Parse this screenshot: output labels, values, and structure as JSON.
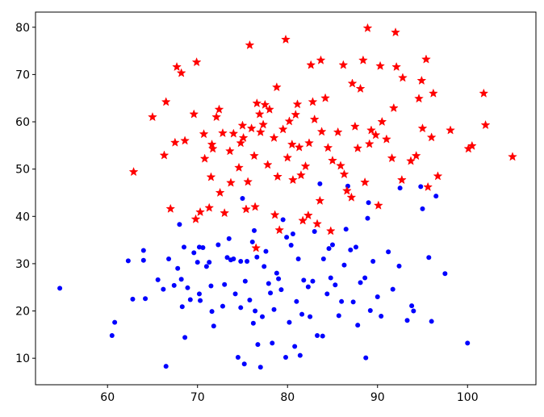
{
  "chart_data": {
    "type": "scatter",
    "xlim": [
      52,
      107.6
    ],
    "ylim": [
      4.4,
      83.2
    ],
    "xticks": [
      60,
      70,
      80,
      90,
      100
    ],
    "yticks": [
      10,
      20,
      30,
      40,
      50,
      60,
      70,
      80
    ],
    "grid": false,
    "series": [
      {
        "color": "#0000ff",
        "marker": "circle",
        "x": [
          54.7,
          60.5,
          60.8,
          62.3,
          62.8,
          64,
          64,
          64.2,
          65.6,
          66.2,
          66.5,
          66.8,
          67.4,
          67.8,
          68,
          68.2,
          68.3,
          68.5,
          68.6,
          68.9,
          69.2,
          69.6,
          70,
          70.2,
          70.2,
          70.3,
          70.6,
          71,
          71.3,
          71.5,
          71.6,
          71.8,
          72.3,
          72.8,
          73,
          73.3,
          73.5,
          73.7,
          74,
          74.2,
          74.5,
          74.8,
          74.8,
          75,
          75.2,
          75.3,
          75.5,
          75.8,
          76.1,
          76.2,
          76.3,
          76.4,
          76.6,
          76.7,
          77,
          77.2,
          77.4,
          77.6,
          77.9,
          78.1,
          78.3,
          78.5,
          78.8,
          79,
          79.3,
          79.5,
          79.8,
          79.9,
          80.2,
          80.4,
          80.6,
          80.8,
          81,
          81.2,
          81.4,
          81.6,
          81.8,
          82.3,
          82.5,
          82.8,
          83,
          83.3,
          83.6,
          83.9,
          84,
          84.4,
          84.6,
          84.8,
          85,
          85.3,
          85.7,
          86,
          86.3,
          86.5,
          86.7,
          87,
          87.3,
          87.6,
          87.8,
          88.1,
          88.6,
          88.7,
          88.9,
          89,
          89.2,
          89.5,
          90,
          90.4,
          91.2,
          91.7,
          92.4,
          92.5,
          93.3,
          93.8,
          94,
          94.8,
          95,
          95.7,
          96,
          96.5,
          97.5,
          100
        ],
        "values": [
          24.8,
          14.8,
          17.6,
          30.6,
          22.5,
          32.8,
          30.7,
          22.6,
          26.6,
          24.6,
          8.3,
          31,
          25.4,
          29,
          38.3,
          26.7,
          20.9,
          33.5,
          14.4,
          24.9,
          22.4,
          32.3,
          30.3,
          33.5,
          23.6,
          22.2,
          33.4,
          29.4,
          30.3,
          25.3,
          19.9,
          16.8,
          34,
          21,
          25.6,
          31.3,
          35.3,
          30.8,
          31,
          23.6,
          10.2,
          20.7,
          30.5,
          43.8,
          8.8,
          26.3,
          30.5,
          22.3,
          34.6,
          17.4,
          37,
          20,
          31.4,
          12.9,
          8.1,
          18.8,
          29.4,
          32.6,
          25.8,
          23.8,
          13.2,
          20.3,
          28,
          26.8,
          24.5,
          39.3,
          10.2,
          35.6,
          17.6,
          33.9,
          36.3,
          12.5,
          22,
          31,
          10.6,
          19.3,
          26.5,
          25.1,
          18.8,
          26.3,
          36.8,
          14.8,
          46.9,
          14.7,
          31,
          23.6,
          33.2,
          27,
          34,
          25.5,
          19,
          22,
          29.7,
          37.3,
          46.4,
          32.9,
          21.9,
          33.5,
          17,
          26,
          27,
          10.1,
          39.6,
          42.9,
          20.1,
          30.5,
          23,
          18.9,
          32.5,
          24.6,
          29.5,
          46,
          18,
          21.1,
          20,
          46.3,
          41.6,
          31.3,
          17.8,
          44.3,
          27.9,
          13.2
        ]
      },
      {
        "color": "#ff0000",
        "marker": "star",
        "x": [
          62.9,
          65,
          66.3,
          66.5,
          67,
          67.5,
          67.7,
          68.2,
          68.6,
          69.6,
          69.8,
          69.9,
          70.3,
          70.7,
          70.8,
          71.3,
          71.5,
          71.6,
          71.7,
          72.1,
          72.4,
          72.5,
          72.8,
          73,
          73.6,
          73.7,
          74,
          74.6,
          74.8,
          75,
          75.1,
          75.4,
          75.6,
          75.8,
          76,
          76.3,
          76.4,
          76.5,
          76.6,
          76.9,
          77,
          77.3,
          77.5,
          77.8,
          78,
          78.5,
          78.6,
          78.8,
          78.9,
          79.1,
          79.5,
          79.8,
          80,
          80.2,
          80.5,
          80.6,
          80.9,
          81.1,
          81.3,
          81.5,
          81.7,
          82,
          82.3,
          82.4,
          82.6,
          82.8,
          83,
          83.3,
          83.6,
          83.7,
          83.8,
          84.2,
          84.5,
          84.8,
          85,
          85.6,
          85.9,
          86.2,
          86.3,
          86.6,
          87.1,
          87.2,
          87.5,
          87.8,
          88.1,
          88.4,
          88.6,
          88.9,
          89.1,
          89.3,
          89.8,
          90.1,
          90.3,
          90.5,
          91,
          91.6,
          91.8,
          92,
          92.1,
          92.7,
          92.8,
          93.7,
          94.3,
          94.6,
          94.9,
          95,
          95.4,
          95.6,
          96,
          96.2,
          96.7,
          98.1,
          100.1,
          100.5,
          101.8,
          102,
          105
        ],
        "values": [
          49.4,
          61,
          52.9,
          64.2,
          41.6,
          55.6,
          71.6,
          70.3,
          56,
          61.6,
          39.4,
          72.6,
          40.9,
          57.4,
          52.2,
          41.8,
          48.3,
          55.2,
          54.3,
          61,
          62.6,
          45,
          57.6,
          40.7,
          53.8,
          47.1,
          57.5,
          50.3,
          55.5,
          59.2,
          56.6,
          41.5,
          47.3,
          76.2,
          58.6,
          52.8,
          42,
          33.3,
          63.9,
          61.6,
          57.8,
          59.4,
          63.6,
          50.9,
          62.6,
          56.6,
          40.3,
          67.3,
          48.4,
          37.1,
          58.4,
          77.4,
          52.4,
          60.1,
          55.2,
          47.7,
          61.5,
          63.7,
          54.6,
          48.7,
          39.1,
          50.6,
          40.2,
          55.5,
          72,
          64.2,
          60.5,
          38.4,
          43.3,
          73,
          57.9,
          65,
          54.5,
          36.9,
          51.8,
          57.8,
          50.7,
          72,
          48.9,
          45.4,
          44,
          68.1,
          59,
          54.4,
          67,
          73,
          47.2,
          79.8,
          55.3,
          58.2,
          57.2,
          42.3,
          71.8,
          60,
          56.3,
          52.3,
          62.9,
          78.9,
          71.6,
          47.7,
          69.3,
          51.7,
          52.8,
          64.9,
          68.7,
          58.6,
          73.2,
          46.2,
          56.7,
          66,
          48.5,
          58.2,
          54.3,
          54.9,
          66,
          59.3,
          52.6
        ]
      }
    ]
  }
}
